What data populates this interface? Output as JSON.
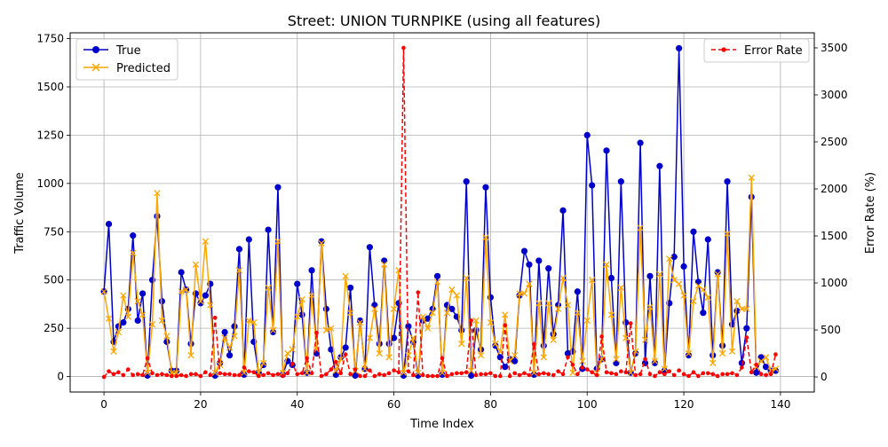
{
  "chart_data": {
    "type": "line",
    "title": "Street: UNION TURNPIKE (using all features)",
    "xlabel": "Time Index",
    "ylabel": "Traffic Volume",
    "y2label": "Error Rate (%)",
    "xlim": [
      -7,
      147
    ],
    "ylim": [
      -80,
      1780
    ],
    "y2lim": [
      -160,
      3660
    ],
    "xticks": [
      0,
      20,
      40,
      60,
      80,
      100,
      120,
      140
    ],
    "yticks": [
      0,
      250,
      500,
      750,
      1000,
      1250,
      1500,
      1750
    ],
    "y2ticks": [
      0,
      500,
      1000,
      1500,
      2000,
      2500,
      3000,
      3500
    ],
    "grid": true,
    "legend_left": "upper-left",
    "legend_right": "upper-right",
    "colors": {
      "true": "#0000cc",
      "predicted": "#ffa500",
      "error": "#ff0000"
    },
    "series": [
      {
        "name": "True",
        "axis": "left",
        "style": "line-circle",
        "values": [
          440,
          790,
          180,
          260,
          280,
          350,
          730,
          290,
          430,
          5,
          500,
          830,
          390,
          180,
          30,
          30,
          540,
          450,
          170,
          430,
          380,
          420,
          480,
          5,
          70,
          230,
          110,
          260,
          660,
          10,
          710,
          180,
          20,
          60,
          760,
          230,
          980,
          10,
          80,
          60,
          480,
          320,
          20,
          550,
          120,
          700,
          350,
          140,
          10,
          100,
          150,
          460,
          5,
          290,
          40,
          670,
          370,
          170,
          600,
          170,
          200,
          380,
          5,
          260,
          180,
          5,
          290,
          300,
          350,
          520,
          10,
          370,
          350,
          310,
          240,
          1010,
          5,
          240,
          140,
          980,
          410,
          160,
          100,
          50,
          90,
          80,
          420,
          650,
          580,
          10,
          600,
          160,
          560,
          220,
          370,
          860,
          120,
          130,
          440,
          40,
          1250,
          990,
          40,
          90,
          1170,
          510,
          70,
          1010,
          280,
          20,
          120,
          1210,
          70,
          520,
          70,
          1090,
          30,
          380,
          620,
          1700,
          570,
          110,
          750,
          490,
          330,
          710,
          110,
          540,
          160,
          1010,
          270,
          340,
          70,
          250,
          930,
          20,
          100,
          50,
          30,
          30
        ]
      },
      {
        "name": "Predicted",
        "axis": "left",
        "style": "line-x",
        "values": [
          440,
          300,
          130,
          230,
          420,
          310,
          640,
          390,
          320,
          20,
          270,
          950,
          290,
          210,
          20,
          20,
          440,
          450,
          110,
          580,
          390,
          700,
          370,
          20,
          60,
          200,
          150,
          210,
          550,
          20,
          290,
          280,
          20,
          70,
          460,
          240,
          700,
          20,
          120,
          140,
          310,
          400,
          20,
          420,
          140,
          690,
          240,
          250,
          30,
          90,
          520,
          330,
          30,
          280,
          40,
          200,
          350,
          120,
          580,
          100,
          350,
          550,
          20,
          110,
          200,
          20,
          310,
          250,
          330,
          490,
          20,
          330,
          450,
          420,
          170,
          510,
          30,
          290,
          110,
          720,
          280,
          170,
          130,
          320,
          80,
          110,
          430,
          430,
          480,
          20,
          380,
          100,
          380,
          190,
          350,
          510,
          370,
          20,
          330,
          80,
          290,
          500,
          20,
          90,
          580,
          320,
          90,
          460,
          200,
          20,
          130,
          770,
          190,
          360,
          80,
          530,
          40,
          610,
          500,
          480,
          420,
          120,
          390,
          470,
          450,
          410,
          70,
          530,
          120,
          740,
          130,
          390,
          350,
          350,
          1030,
          50,
          80,
          100,
          30,
          40
        ]
      },
      {
        "name": "Error Rate",
        "axis": "right",
        "style": "dashed-dot",
        "values": [
          0,
          60,
          30,
          50,
          20,
          80,
          20,
          30,
          20,
          200,
          40,
          20,
          30,
          20,
          10,
          10,
          20,
          10,
          30,
          30,
          10,
          50,
          20,
          630,
          40,
          30,
          30,
          20,
          20,
          100,
          60,
          50,
          10,
          20,
          40,
          20,
          30,
          10,
          40,
          140,
          30,
          40,
          200,
          40,
          470,
          10,
          30,
          80,
          160,
          40,
          240,
          30,
          80,
          10,
          10,
          70,
          10,
          30,
          20,
          40,
          70,
          50,
          3500,
          60,
          20,
          900,
          20,
          10,
          10,
          10,
          200,
          10,
          30,
          40,
          40,
          50,
          600,
          20,
          30,
          30,
          40,
          10,
          10,
          550,
          10,
          40,
          20,
          40,
          20,
          350,
          30,
          40,
          30,
          20,
          60,
          30,
          210,
          130,
          30,
          100,
          80,
          50,
          20,
          430,
          50,
          40,
          30,
          60,
          50,
          570,
          20,
          30,
          190,
          30,
          10,
          50,
          30,
          60,
          20,
          70,
          30,
          10,
          50,
          10,
          40,
          40,
          30,
          10,
          30,
          30,
          40,
          20,
          100,
          420,
          50,
          130,
          30,
          20,
          30,
          240
        ]
      }
    ]
  }
}
